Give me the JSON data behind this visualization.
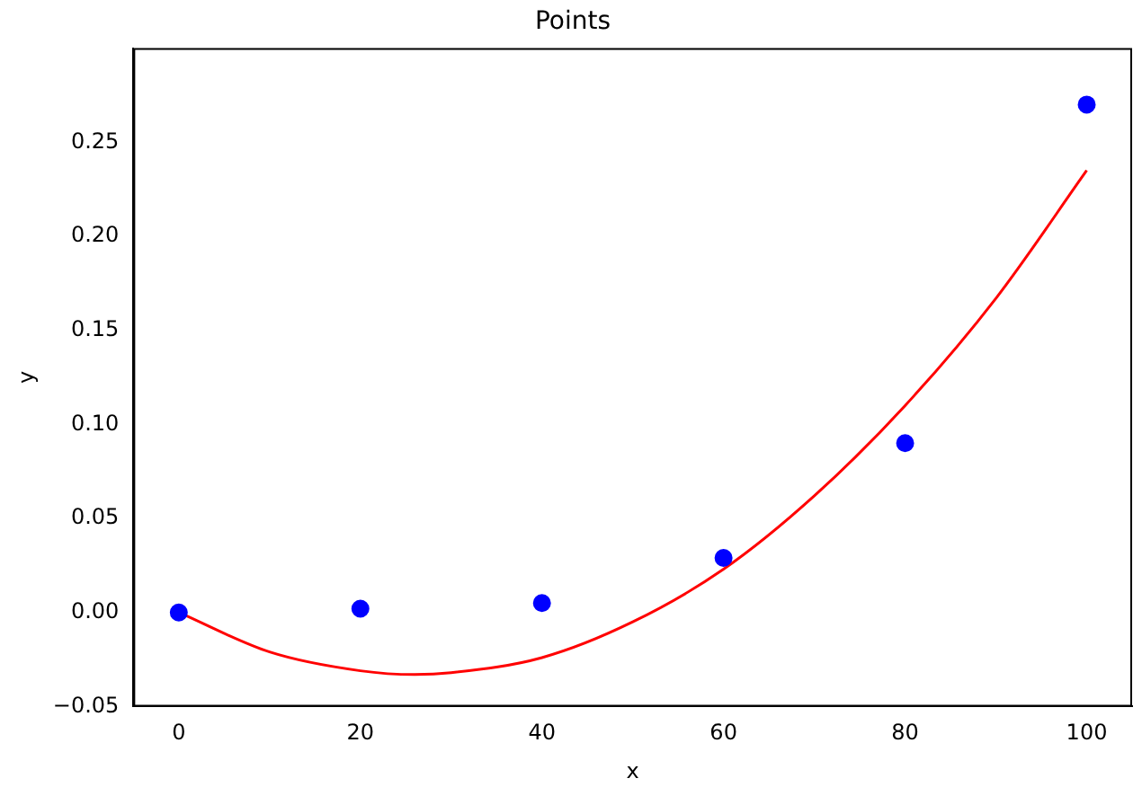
{
  "chart_data": {
    "type": "scatter",
    "title": "Points",
    "xlabel": "x",
    "ylabel": "y",
    "grid": false,
    "legend": false,
    "xlim": [
      -5,
      105
    ],
    "xticks": [
      0,
      20,
      40,
      60,
      80,
      100
    ],
    "ylim": [
      -0.05,
      0.3
    ],
    "yticks": [
      {
        "value": -0.05,
        "label": "−0.05"
      },
      {
        "value": 0,
        "label": "0.00"
      },
      {
        "value": 0.05,
        "label": "0.05"
      },
      {
        "value": 0.1,
        "label": "0.10"
      },
      {
        "value": 0.15,
        "label": "0.15"
      },
      {
        "value": 0.2,
        "label": "0.20"
      },
      {
        "value": 0.25,
        "label": "0.25"
      }
    ],
    "series": [
      {
        "marker": "circle",
        "color": "#0000ff",
        "x": [
          0,
          20,
          40,
          60,
          80,
          100
        ],
        "values": [
          0,
          0.002,
          0.005,
          0.029,
          0.09,
          0.27
        ]
      },
      {
        "type": "line",
        "marker": "none",
        "line_style": "solid",
        "color": "#ff0000",
        "x": [
          0,
          10,
          20,
          26,
          30,
          40,
          50,
          60,
          70,
          80,
          90,
          100
        ],
        "values": [
          0,
          -0.021,
          -0.031,
          -0.033,
          -0.032,
          -0.024,
          -0.005,
          0.023,
          0.062,
          0.11,
          0.167,
          0.235
        ]
      }
    ]
  }
}
